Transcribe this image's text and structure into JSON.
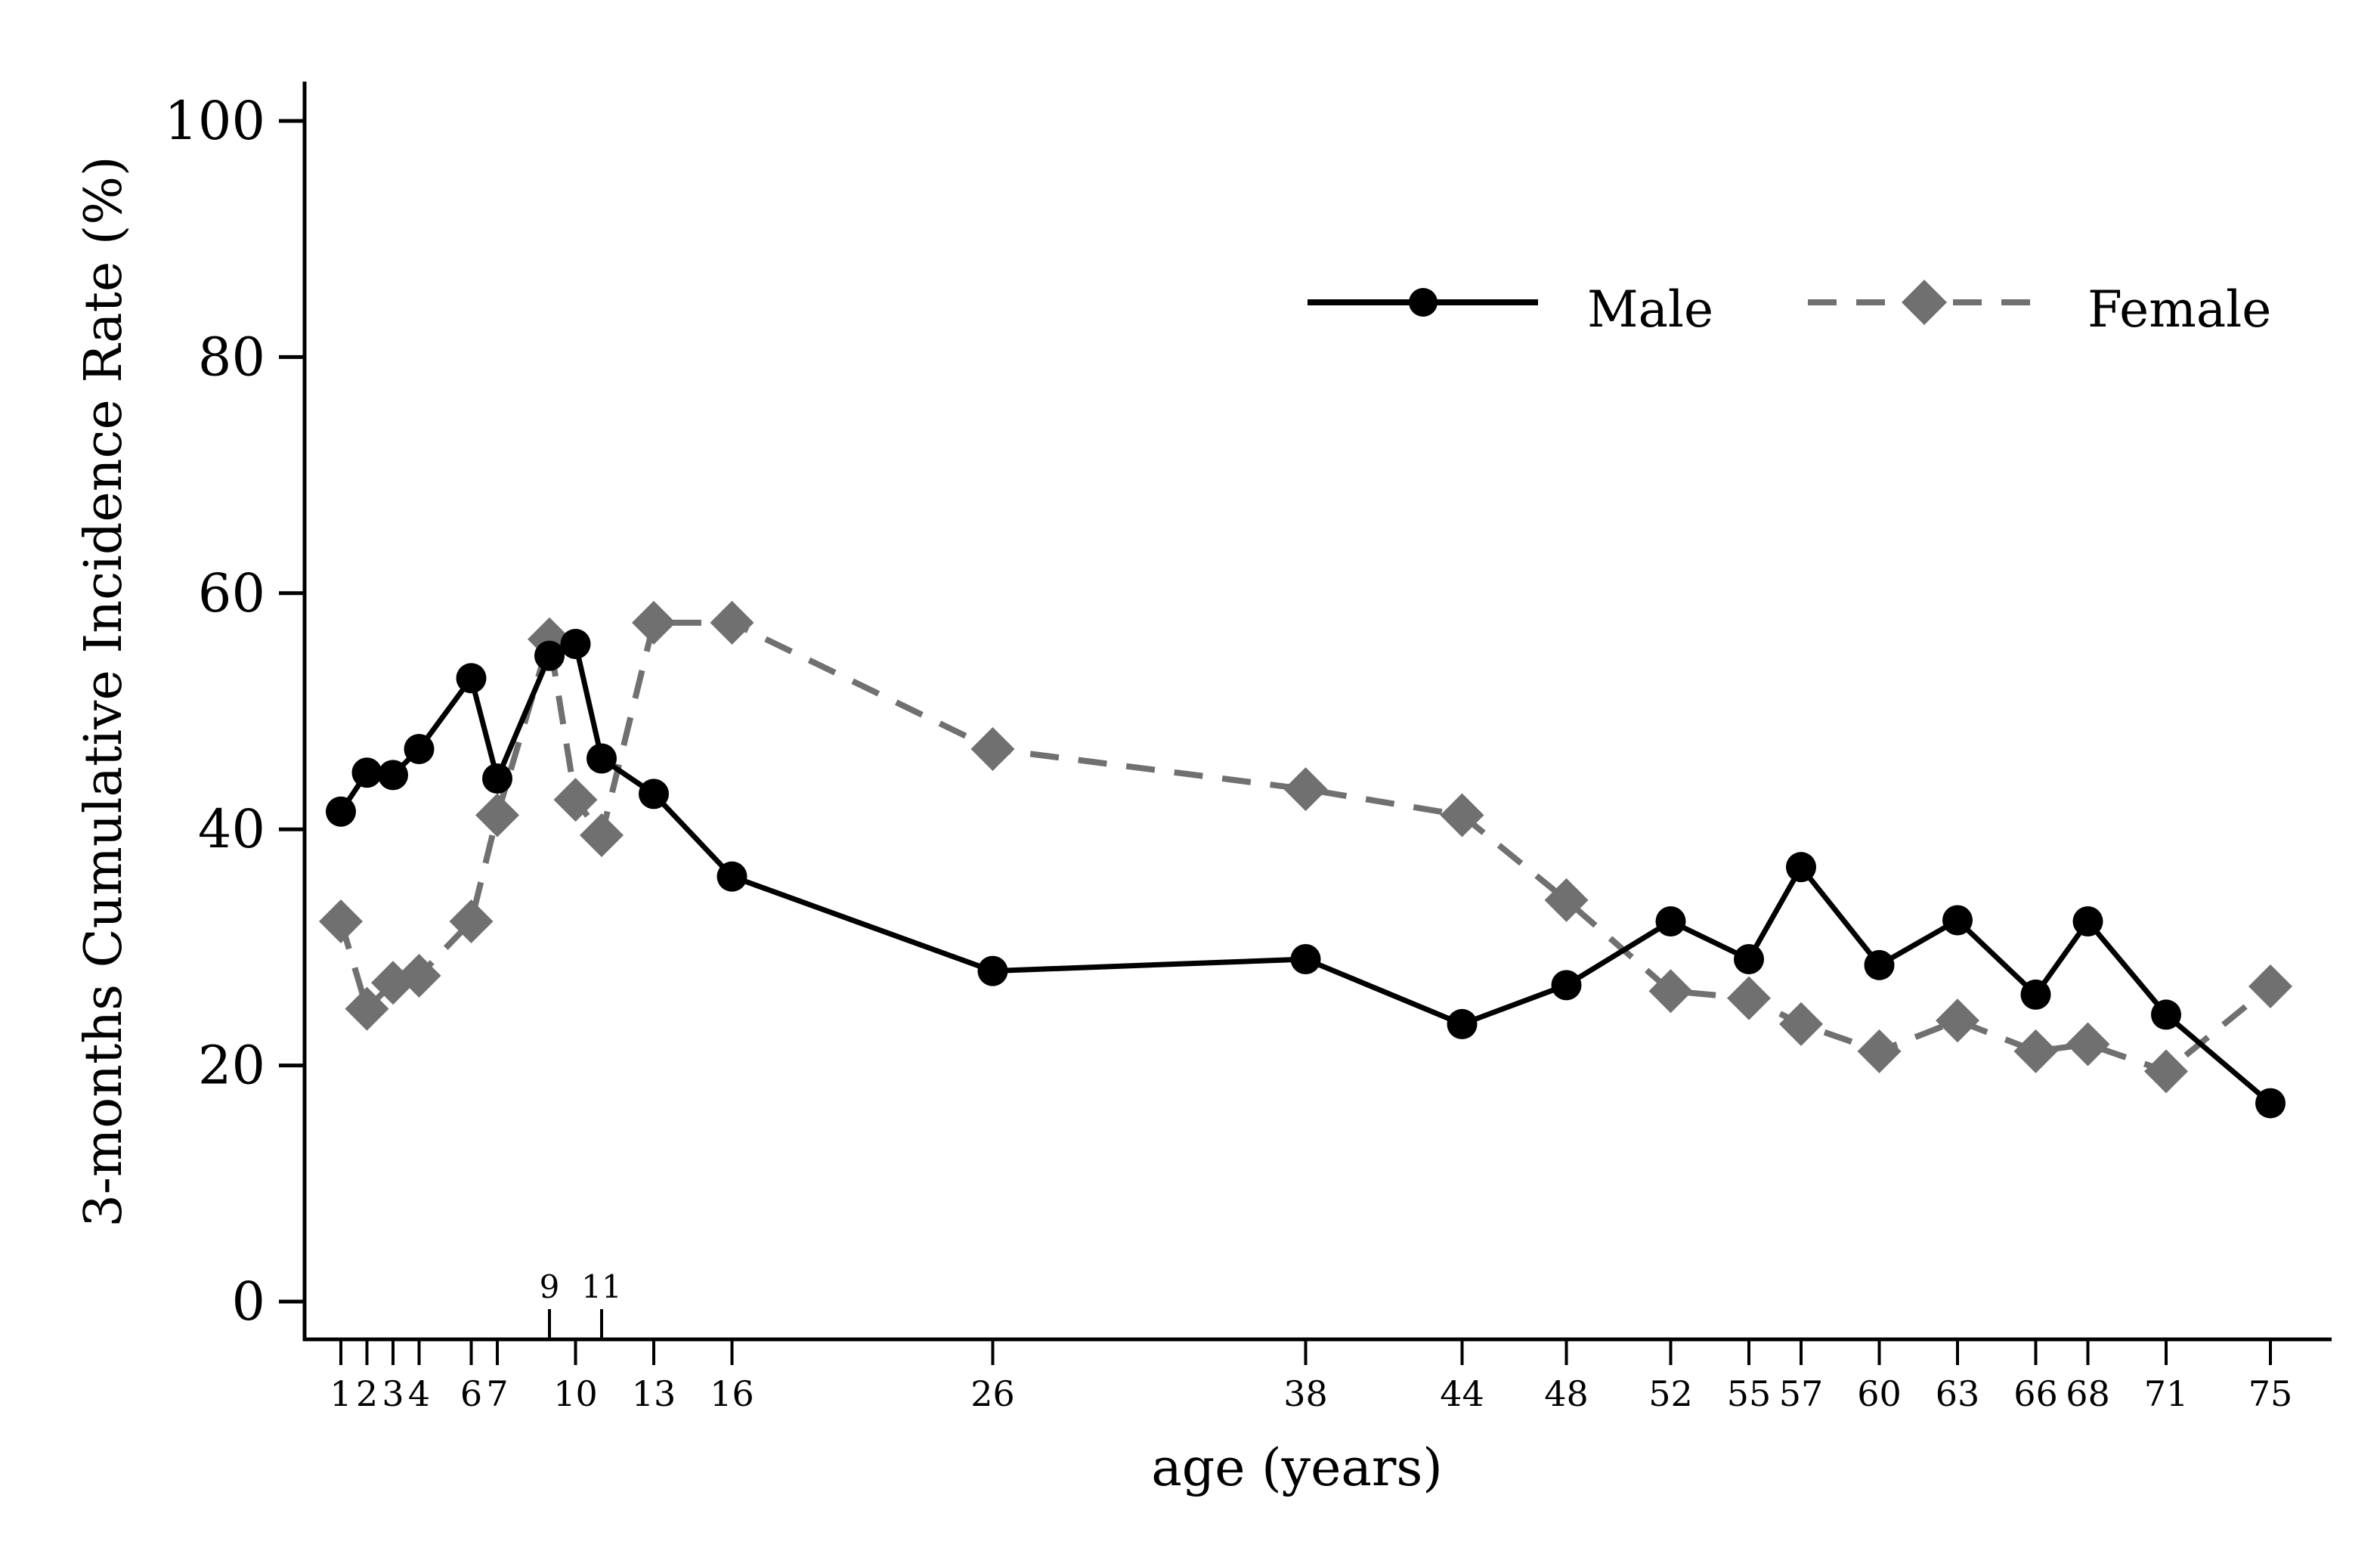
{
  "chart_data": {
    "type": "line",
    "title": "",
    "xlabel": "age (years)",
    "ylabel": "3-months Cumulative Incidence Rate (%)",
    "xlim": [
      0,
      76
    ],
    "ylim": [
      0,
      100
    ],
    "y_ticks": [
      0,
      20,
      40,
      60,
      80,
      100
    ],
    "x_ticks_bottom": [
      1,
      2,
      3,
      4,
      6,
      7,
      10,
      13,
      16,
      26,
      38,
      44,
      48,
      52,
      55,
      57,
      60,
      63,
      66,
      68,
      71,
      75
    ],
    "x_ticks_top": [
      9,
      11
    ],
    "grid": false,
    "legend_placement": "top-right",
    "series": [
      {
        "name": "Male",
        "style": "solid",
        "marker": "circle",
        "color": "#000000",
        "x": [
          1,
          2,
          3,
          4,
          6,
          7,
          9,
          10,
          11,
          13,
          16,
          26,
          38,
          44,
          48,
          52,
          55,
          57,
          60,
          63,
          66,
          68,
          71,
          75
        ],
        "y": [
          41.5,
          44.8,
          44.6,
          46.8,
          52.8,
          44.3,
          54.7,
          55.7,
          46.0,
          43.0,
          36.0,
          28.0,
          29.0,
          23.5,
          26.8,
          32.2,
          29.0,
          36.8,
          28.5,
          32.3,
          26.0,
          32.2,
          24.3,
          16.8
        ]
      },
      {
        "name": "Female",
        "style": "dashed",
        "marker": "diamond",
        "color": "#707070",
        "x": [
          1,
          2,
          3,
          4,
          6,
          7,
          9,
          10,
          11,
          13,
          16,
          26,
          38,
          44,
          48,
          52,
          55,
          57,
          60,
          63,
          66,
          68,
          71,
          75
        ],
        "y": [
          32.2,
          24.8,
          27.0,
          27.6,
          32.2,
          41.2,
          56.1,
          42.5,
          39.5,
          57.5,
          57.5,
          46.8,
          43.4,
          41.2,
          34.0,
          26.3,
          25.7,
          23.5,
          21.2,
          23.8,
          21.2,
          21.8,
          19.5,
          26.7
        ]
      }
    ]
  }
}
